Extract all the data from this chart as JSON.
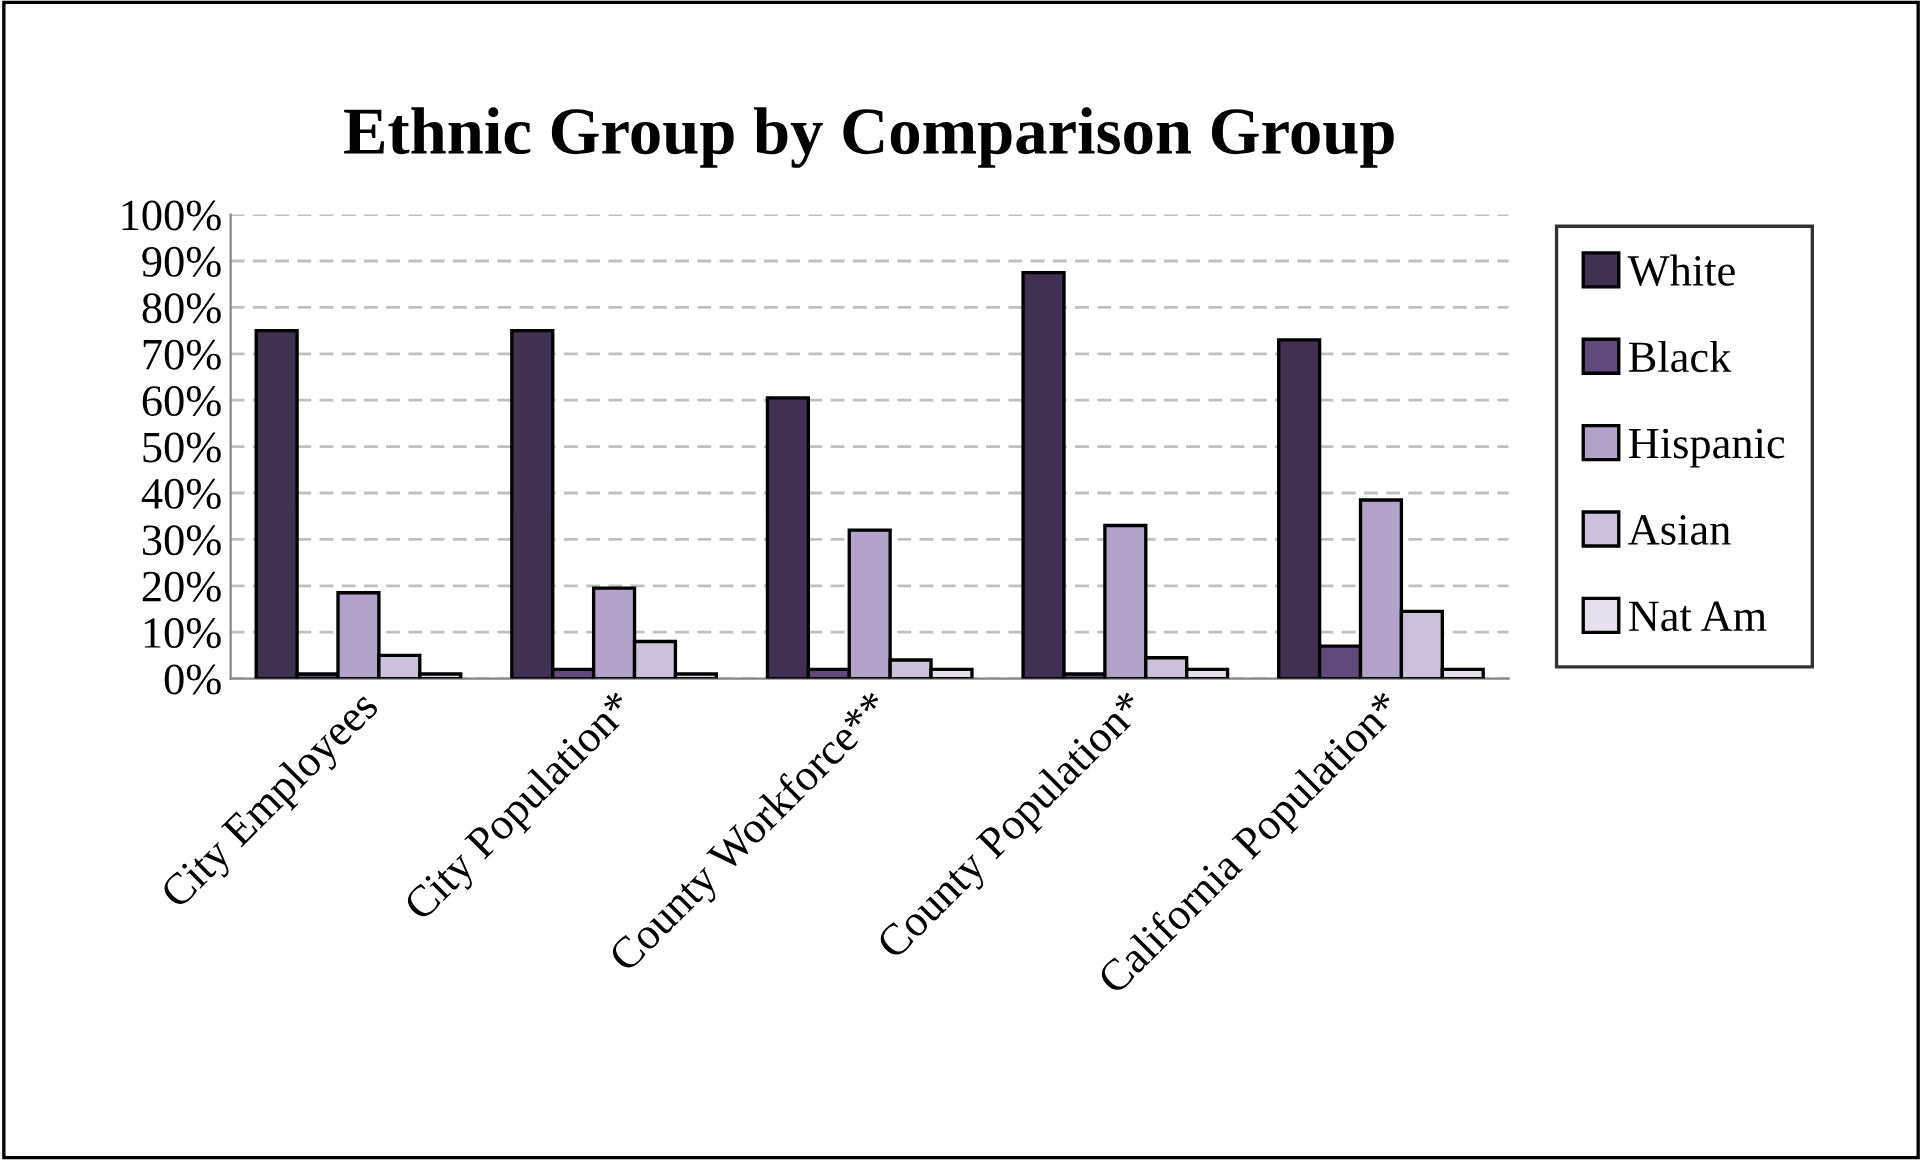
{
  "chart_data": {
    "type": "bar",
    "title": "Ethnic Group by Comparison Group",
    "categories": [
      "City Employees",
      "City Population*",
      "County Workforce**",
      "County Population*",
      "California Population*"
    ],
    "series": [
      {
        "name": "White",
        "color": "#403151",
        "values": [
          75,
          75,
          60.5,
          87.5,
          73
        ]
      },
      {
        "name": "Black",
        "color": "#604a7b",
        "values": [
          1,
          2,
          2,
          1,
          7
        ]
      },
      {
        "name": "Hispanic",
        "color": "#b3a2c7",
        "values": [
          18.5,
          19.5,
          32,
          33,
          38.5
        ]
      },
      {
        "name": "Asian",
        "color": "#ccc1da",
        "values": [
          5,
          8,
          4,
          4.5,
          14.5
        ]
      },
      {
        "name": "Nat Am",
        "color": "#e5e0ec",
        "values": [
          1,
          1,
          2,
          2,
          2
        ]
      }
    ],
    "ylim": [
      0,
      100
    ],
    "yticks": [
      {
        "value": 0,
        "label": "0%"
      },
      {
        "value": 10,
        "label": "10%"
      },
      {
        "value": 20,
        "label": "20%"
      },
      {
        "value": 30,
        "label": "30%"
      },
      {
        "value": 40,
        "label": "40%"
      },
      {
        "value": 50,
        "label": "50%"
      },
      {
        "value": 60,
        "label": "60%"
      },
      {
        "value": 70,
        "label": "70%"
      },
      {
        "value": 80,
        "label": "80%"
      },
      {
        "value": 90,
        "label": "90%"
      },
      {
        "value": 100,
        "label": "100%"
      }
    ],
    "grid": "y",
    "legend": "right"
  }
}
